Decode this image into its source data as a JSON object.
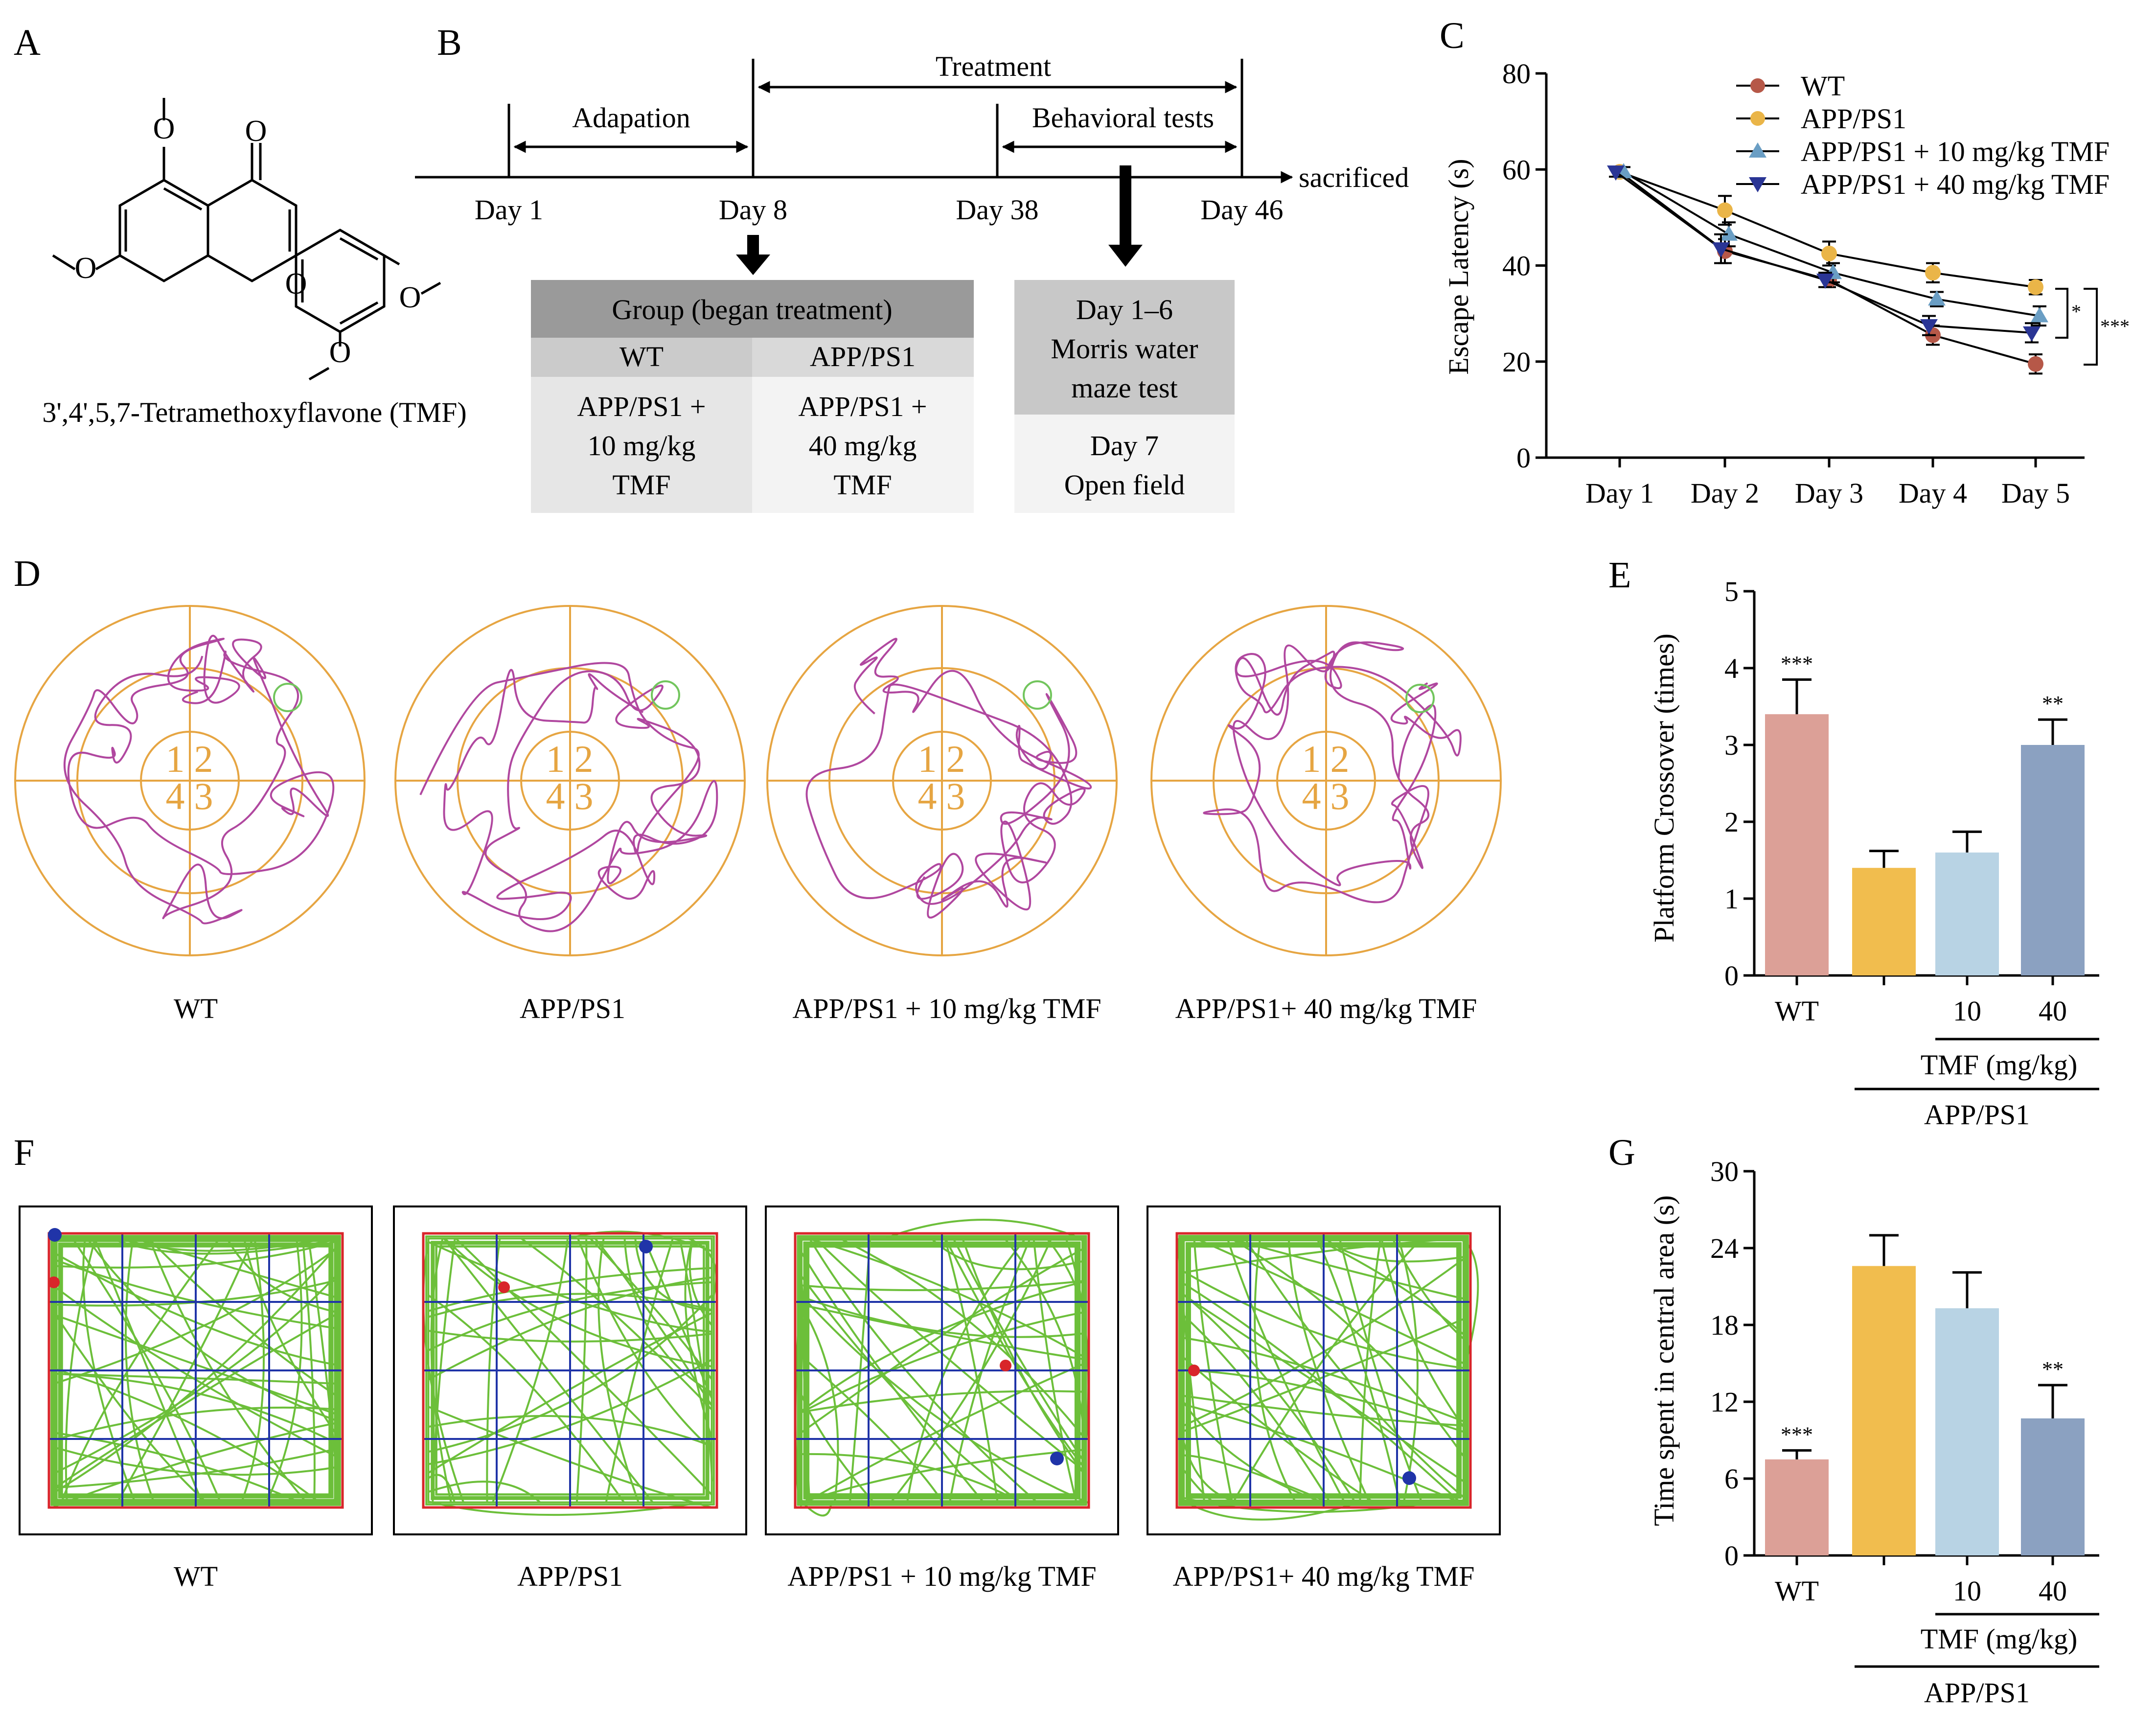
{
  "colors": {
    "wt": "#dca097",
    "app": "#f1bd4e",
    "tmf10": "#b8d3e4",
    "tmf40": "#8ba1c1",
    "wt_line": "#b65848",
    "app_line": "#eab548",
    "tmf10_line": "#6a9ec4",
    "tmf40_line": "#2a3595",
    "maze": "#e6a542",
    "path": "#b0479f",
    "target": "#72c55d",
    "track": "#6cbf3a",
    "grid": "#2034a8",
    "border": "#d8252a",
    "header_dark": "#9a9a9a",
    "header_light": "#cbcbcb",
    "cell_left": "#e6e6e6",
    "cell_right": "#f3f3f3"
  },
  "panels": {
    "A": "A",
    "B": "B",
    "C": "C",
    "D": "D",
    "E": "E",
    "F": "F",
    "G": "G"
  },
  "panelA": {
    "caption": "3',4',5,7-Tetramethoxyflavone (TMF)",
    "carbonyl_o": "O",
    "ring_o": "O"
  },
  "panelB": {
    "phases": {
      "adaptation": "Adapation",
      "treatment": "Treatment",
      "behavior": "Behavioral tests"
    },
    "days": [
      "Day 1",
      "Day 8",
      "Day 38",
      "Day 46"
    ],
    "end_label": "sacrificed",
    "group_table": {
      "header": "Group (began treatment)",
      "columns": [
        "WT",
        "APP/PS1"
      ],
      "rows": [
        [
          "APP/PS1 +",
          "APP/PS1 +"
        ],
        [
          "10 mg/kg",
          "40 mg/kg"
        ],
        [
          "TMF",
          "TMF"
        ]
      ]
    },
    "test_table": {
      "morris": [
        "Day 1–6",
        "Morris water",
        "maze test"
      ],
      "open_field": [
        "Day 7",
        "Open field"
      ]
    }
  },
  "maze_labels": [
    "WT",
    "APP/PS1",
    "APP/PS1 + 10 mg/kg TMF",
    "APP/PS1+ 40 mg/kg TMF"
  ],
  "quadrants": [
    "1",
    "2",
    "4",
    "3"
  ],
  "openfield_labels": [
    "WT",
    "APP/PS1",
    "APP/PS1 + 10 mg/kg TMF",
    "APP/PS1+ 40 mg/kg TMF"
  ],
  "chart_data": [
    {
      "id": "C",
      "type": "line",
      "ylabel": "Escape Latency (s)",
      "xlabel": "",
      "ylim": [
        0,
        80
      ],
      "yticks": [
        0,
        20,
        40,
        60,
        80
      ],
      "categories": [
        "Day 1",
        "Day 2",
        "Day 3",
        "Day 4",
        "Day 5"
      ],
      "series": [
        {
          "name": "WT",
          "marker": "circle",
          "values": [
            59.5,
            43,
            37,
            25.5,
            19.5
          ],
          "errors": [
            1,
            2.5,
            1.5,
            2,
            2
          ]
        },
        {
          "name": "APP/PS1",
          "marker": "circle",
          "values": [
            59.5,
            51.5,
            42.5,
            38.5,
            35.5
          ],
          "errors": [
            1,
            3,
            2.5,
            2,
            1.5
          ]
        },
        {
          "name": "APP/PS1 + 10 mg/kg TMF",
          "marker": "triangle-up",
          "values": [
            59.5,
            46.5,
            38.5,
            33,
            29.5
          ],
          "errors": [
            1,
            2.5,
            2,
            1.5,
            2
          ]
        },
        {
          "name": "APP/PS1 + 40 mg/kg TMF",
          "marker": "triangle-down",
          "values": [
            59.5,
            43.5,
            37,
            27.5,
            26
          ],
          "errors": [
            1,
            3,
            1.5,
            2,
            2
          ]
        }
      ],
      "legend_position": "top-right",
      "significance": [
        "*",
        "***"
      ]
    },
    {
      "id": "E",
      "type": "bar",
      "ylabel": "Platform Crossover (times)",
      "ylim": [
        0,
        5
      ],
      "yticks": [
        0,
        1,
        2,
        3,
        4,
        5
      ],
      "categories": [
        "WT",
        "",
        "10",
        "40"
      ],
      "values": [
        3.4,
        1.4,
        1.6,
        3.0
      ],
      "errors": [
        0.45,
        0.22,
        0.27,
        0.33
      ],
      "significance": [
        "***",
        "",
        "",
        "**"
      ],
      "group_labels": {
        "tmf": "TMF (mg/kg)",
        "model": "APP/PS1"
      }
    },
    {
      "id": "G",
      "type": "bar",
      "ylabel": "Time spent in central area (s)",
      "ylim": [
        0,
        30
      ],
      "yticks": [
        0,
        6,
        12,
        18,
        24,
        30
      ],
      "categories": [
        "WT",
        "",
        "10",
        "40"
      ],
      "values": [
        7.5,
        22.6,
        19.3,
        10.7
      ],
      "errors": [
        0.7,
        2.4,
        2.8,
        2.6
      ],
      "significance": [
        "***",
        "",
        "",
        "**"
      ],
      "group_labels": {
        "tmf": "TMF (mg/kg)",
        "model": "APP/PS1"
      }
    }
  ]
}
